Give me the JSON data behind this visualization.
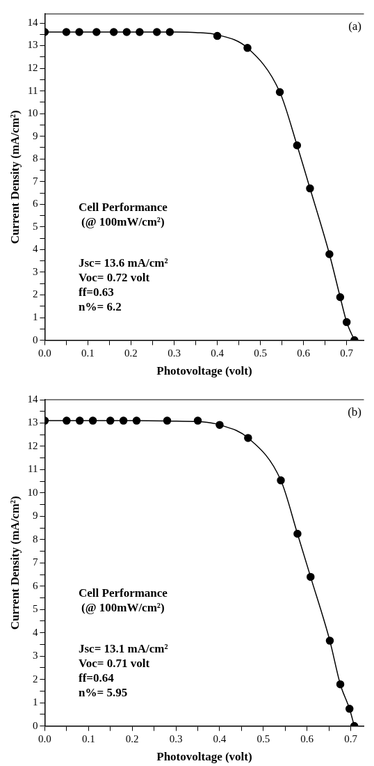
{
  "chart_data": [
    {
      "type": "scatter",
      "xlabel": "Photovoltage (volt)",
      "ylabel": "Current Density (mA/cm²)",
      "xlim": [
        0,
        0.74
      ],
      "ylim": [
        0,
        14.4
      ],
      "xticks": [
        {
          "value": 0,
          "label": "0.0"
        },
        {
          "value": 0.05,
          "label": null
        },
        {
          "value": 0.1,
          "label": "0.1"
        },
        {
          "value": 0.15,
          "label": null
        },
        {
          "value": 0.2,
          "label": "0.2"
        },
        {
          "value": 0.25,
          "label": null
        },
        {
          "value": 0.3,
          "label": "0.3"
        },
        {
          "value": 0.35,
          "label": null
        },
        {
          "value": 0.4,
          "label": "0.4"
        },
        {
          "value": 0.45,
          "label": null
        },
        {
          "value": 0.5,
          "label": "0.5"
        },
        {
          "value": 0.55,
          "label": null
        },
        {
          "value": 0.6,
          "label": "0.6"
        },
        {
          "value": 0.65,
          "label": null
        },
        {
          "value": 0.7,
          "label": "0.7"
        }
      ],
      "yticks": [
        0,
        {
          "value": 0.5,
          "label": null
        },
        1,
        {
          "value": 1.5,
          "label": null
        },
        2,
        {
          "value": 2.5,
          "label": null
        },
        3,
        {
          "value": 3.5,
          "label": null
        },
        4,
        {
          "value": 4.5,
          "label": null
        },
        5,
        {
          "value": 5.5,
          "label": null
        },
        6,
        {
          "value": 6.5,
          "label": null
        },
        7,
        {
          "value": 7.5,
          "label": null
        },
        8,
        {
          "value": 8.5,
          "label": null
        },
        9,
        {
          "value": 9.5,
          "label": null
        },
        10,
        {
          "value": 10.5,
          "label": null
        },
        11,
        {
          "value": 11.5,
          "label": null
        },
        12,
        {
          "value": 12.5,
          "label": null
        },
        13,
        {
          "value": 13.5,
          "label": null
        },
        14
      ],
      "grid": false,
      "legend": false,
      "series": [
        {
          "type": "scatter",
          "marker": "circle",
          "color": "#000000",
          "x": [
            0,
            0.05,
            0.08,
            0.12,
            0.16,
            0.19,
            0.22,
            0.26,
            0.29,
            0.4,
            0.47,
            0.545,
            0.585,
            0.615,
            0.66,
            0.685,
            0.7,
            0.718
          ],
          "values": [
            13.6,
            13.6,
            13.6,
            13.6,
            13.6,
            13.6,
            13.6,
            13.6,
            13.6,
            13.43,
            12.9,
            10.95,
            8.6,
            6.7,
            3.8,
            1.9,
            0.8,
            0
          ]
        },
        {
          "type": "line",
          "marker": "none",
          "line_style": "solid",
          "color": "#000000",
          "x": [
            0,
            0.1,
            0.2,
            0.3,
            0.35,
            0.4,
            0.47,
            0.545,
            0.585,
            0.615,
            0.66,
            0.685,
            0.7,
            0.718
          ],
          "values": [
            13.6,
            13.6,
            13.6,
            13.6,
            13.58,
            13.48,
            12.9,
            10.95,
            8.6,
            6.7,
            3.8,
            1.9,
            0.8,
            0
          ]
        }
      ],
      "annotations": [
        "(a)",
        "Cell Performance",
        "(@ 100mW/cm²)",
        "Jsc= 13.6 mA/cm²",
        "Voc= 0.72 volt",
        "ff=0.63",
        "n%= 6.2"
      ]
    },
    {
      "type": "scatter",
      "xlabel": "Photovoltage (volt)",
      "ylabel": "Current Density (mA/cm²)",
      "xlim": [
        0,
        0.73
      ],
      "ylim": [
        0,
        14
      ],
      "xticks": [
        {
          "value": 0,
          "label": "0.0"
        },
        {
          "value": 0.05,
          "label": null
        },
        {
          "value": 0.1,
          "label": "0.1"
        },
        {
          "value": 0.15,
          "label": null
        },
        {
          "value": 0.2,
          "label": "0.2"
        },
        {
          "value": 0.25,
          "label": null
        },
        {
          "value": 0.3,
          "label": "0.3"
        },
        {
          "value": 0.35,
          "label": null
        },
        {
          "value": 0.4,
          "label": "0.4"
        },
        {
          "value": 0.45,
          "label": null
        },
        {
          "value": 0.5,
          "label": "0.5"
        },
        {
          "value": 0.55,
          "label": null
        },
        {
          "value": 0.6,
          "label": "0.6"
        },
        {
          "value": 0.65,
          "label": null
        },
        {
          "value": 0.7,
          "label": "0.7"
        }
      ],
      "yticks": [
        0,
        {
          "value": 0.5,
          "label": null
        },
        1,
        {
          "value": 1.5,
          "label": null
        },
        2,
        {
          "value": 2.5,
          "label": null
        },
        3,
        {
          "value": 3.5,
          "label": null
        },
        4,
        {
          "value": 4.5,
          "label": null
        },
        5,
        {
          "value": 5.5,
          "label": null
        },
        6,
        {
          "value": 6.5,
          "label": null
        },
        7,
        {
          "value": 7.5,
          "label": null
        },
        8,
        {
          "value": 8.5,
          "label": null
        },
        9,
        {
          "value": 9.5,
          "label": null
        },
        10,
        {
          "value": 10.5,
          "label": null
        },
        11,
        {
          "value": 11.5,
          "label": null
        },
        12,
        {
          "value": 12.5,
          "label": null
        },
        13,
        {
          "value": 13.5,
          "label": null
        },
        14
      ],
      "grid": false,
      "legend": false,
      "series": [
        {
          "type": "scatter",
          "marker": "circle",
          "color": "#000000",
          "x": [
            0,
            0.05,
            0.08,
            0.11,
            0.15,
            0.18,
            0.21,
            0.28,
            0.35,
            0.4,
            0.465,
            0.54,
            0.578,
            0.608,
            0.652,
            0.676,
            0.697,
            0.708
          ],
          "values": [
            13.1,
            13.1,
            13.1,
            13.1,
            13.1,
            13.1,
            13.1,
            13.1,
            13.1,
            12.92,
            12.36,
            10.54,
            8.25,
            6.4,
            3.66,
            1.79,
            0.74,
            0
          ]
        },
        {
          "type": "line",
          "marker": "none",
          "line_style": "solid",
          "color": "#000000",
          "x": [
            0,
            0.1,
            0.2,
            0.3,
            0.36,
            0.4,
            0.465,
            0.54,
            0.578,
            0.608,
            0.652,
            0.676,
            0.697,
            0.708
          ],
          "values": [
            13.1,
            13.1,
            13.1,
            13.08,
            13.05,
            12.92,
            12.36,
            10.54,
            8.25,
            6.4,
            3.66,
            1.79,
            0.74,
            0
          ]
        }
      ],
      "annotations": [
        "(b)",
        "Cell Performance",
        "(@ 100mW/cm²)",
        "Jsc= 13.1 mA/cm²",
        "Voc= 0.71 volt",
        "ff=0.64",
        "n%= 5.95"
      ]
    }
  ]
}
